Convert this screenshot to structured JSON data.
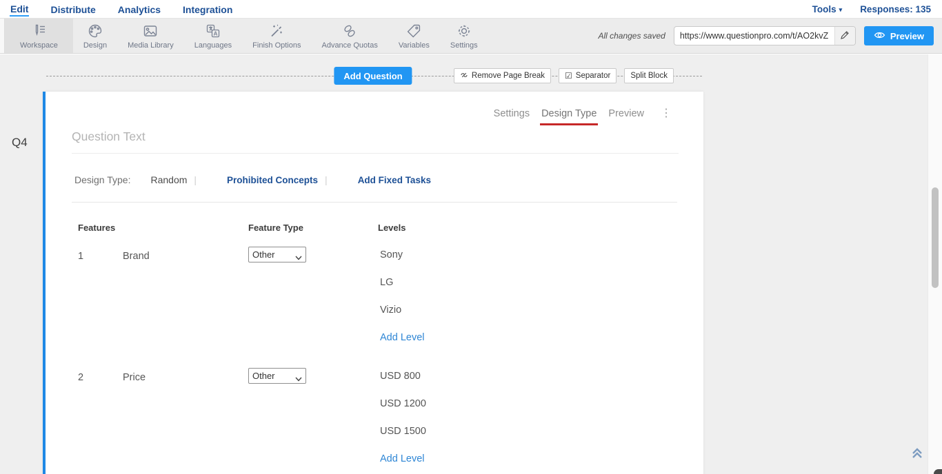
{
  "nav": {
    "items": [
      {
        "label": "Edit",
        "active": true
      },
      {
        "label": "Distribute",
        "active": false
      },
      {
        "label": "Analytics",
        "active": false
      },
      {
        "label": "Integration",
        "active": false
      }
    ],
    "tools_label": "Tools",
    "responses_label": "Responses: 135"
  },
  "toolbar": {
    "buttons": [
      {
        "label": "Workspace",
        "icon": "workspace-icon",
        "active": true
      },
      {
        "label": "Design",
        "icon": "design-icon",
        "active": false
      },
      {
        "label": "Media Library",
        "icon": "media-library-icon",
        "active": false
      },
      {
        "label": "Languages",
        "icon": "languages-icon",
        "active": false
      },
      {
        "label": "Finish Options",
        "icon": "finish-options-icon",
        "active": false
      },
      {
        "label": "Advance Quotas",
        "icon": "advance-quotas-icon",
        "active": false
      },
      {
        "label": "Variables",
        "icon": "variables-icon",
        "active": false
      },
      {
        "label": "Settings",
        "icon": "settings-icon",
        "active": false
      }
    ],
    "save_status": "All changes saved",
    "url_value": "https://www.questionpro.com/t/AO2kvZ",
    "preview_label": "Preview"
  },
  "page_controls": {
    "add_question_label": "Add Question",
    "remove_page_break_label": "Remove Page Break",
    "separator_label": "Separator",
    "split_block_label": "Split Block"
  },
  "question": {
    "id_label": "Q4",
    "tabs": [
      {
        "label": "Settings",
        "active": false
      },
      {
        "label": "Design Type",
        "active": true
      },
      {
        "label": "Preview",
        "active": false
      }
    ],
    "text_placeholder": "Question Text",
    "design_type_label": "Design Type:",
    "design_type_value": "Random",
    "links": {
      "prohibited_concepts": "Prohibited Concepts",
      "add_fixed_tasks": "Add Fixed Tasks"
    },
    "table": {
      "headers": {
        "features": "Features",
        "feature_type": "Feature Type",
        "levels": "Levels"
      },
      "add_level_label": "Add Level",
      "rows": [
        {
          "index": "1",
          "name": "Brand",
          "feature_type": "Other",
          "levels": [
            "Sony",
            "LG",
            "Vizio"
          ]
        },
        {
          "index": "2",
          "name": "Price",
          "feature_type": "Other",
          "levels": [
            "USD 800",
            "USD 1200",
            "USD 1500"
          ]
        }
      ]
    }
  },
  "colors": {
    "accent_blue": "#2196f3",
    "nav_blue": "#1d5096",
    "card_accent_blue": "#1e88e5",
    "active_tab_red": "#c62828",
    "link_blue": "#1d5096",
    "add_level_blue": "#2e86d5"
  }
}
